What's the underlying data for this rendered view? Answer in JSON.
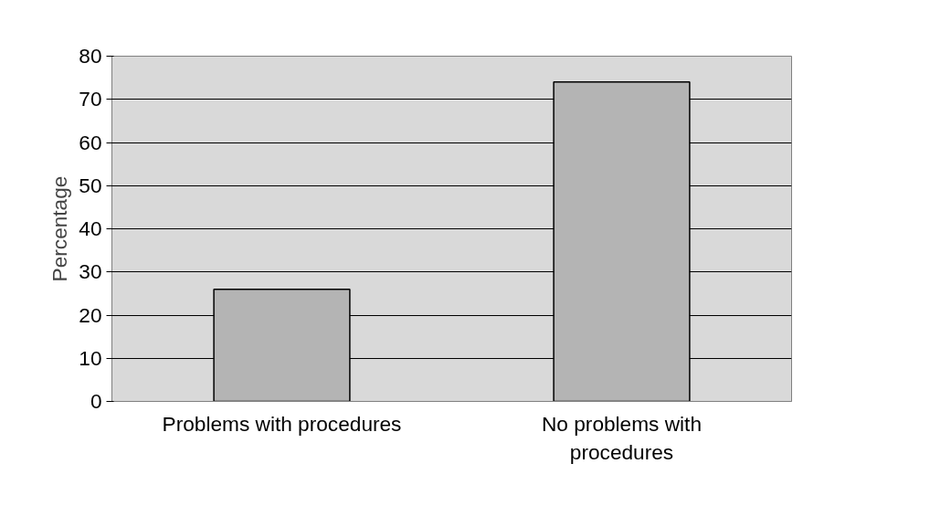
{
  "chart_data": {
    "type": "bar",
    "ylabel": "Percentage",
    "categories": [
      "Problems with procedures",
      "No problems with procedures"
    ],
    "values": [
      26,
      74
    ],
    "color": "#b4b4b4",
    "ylim": [
      0,
      80
    ],
    "yticks": [
      0,
      10,
      20,
      30,
      40,
      50,
      60,
      70,
      80
    ],
    "grid": "y"
  }
}
